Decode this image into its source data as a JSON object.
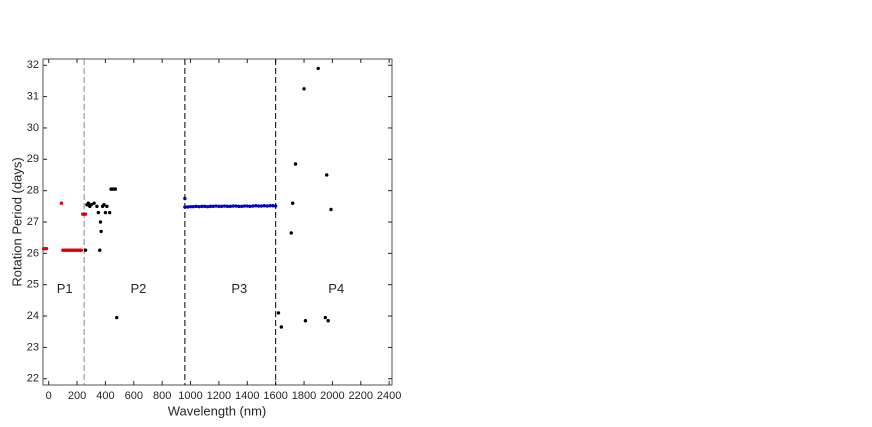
{
  "chart_data": {
    "type": "scatter",
    "xlabel": "Wavelength (nm)",
    "ylabel": "Rotation Period (days)",
    "xlim": [
      -40,
      2420
    ],
    "ylim": [
      21.8,
      32.2
    ],
    "xticks": [
      0,
      200,
      400,
      600,
      800,
      1000,
      1200,
      1400,
      1600,
      1800,
      2000,
      2200,
      2400
    ],
    "yticks": [
      22,
      23,
      24,
      25,
      26,
      27,
      28,
      29,
      30,
      31,
      32
    ],
    "grid": false,
    "reference_lines": [
      {
        "x": 250,
        "color": "#888888"
      },
      {
        "x": 960,
        "color": "#000000"
      },
      {
        "x": 1600,
        "color": "#000000"
      }
    ],
    "annotations": [
      {
        "text": "P1",
        "x": 113,
        "y": 24.85
      },
      {
        "text": "P2",
        "x": 633,
        "y": 24.85
      },
      {
        "text": "P3",
        "x": 1344,
        "y": 24.85
      },
      {
        "text": "P4",
        "x": 2027,
        "y": 24.85
      }
    ],
    "series": [
      {
        "color": "#e00000",
        "x": [
          -35,
          -25,
          -15,
          90,
          100,
          110,
          120,
          130,
          140,
          150,
          160,
          170,
          180,
          190,
          200,
          210,
          220,
          230,
          240,
          250,
          260
        ],
        "values": [
          26.15,
          26.15,
          26.15,
          27.6,
          26.1,
          26.1,
          26.1,
          26.1,
          26.1,
          26.1,
          26.1,
          26.1,
          26.1,
          26.1,
          26.1,
          26.1,
          26.1,
          26.1,
          27.25,
          27.25,
          27.25
        ]
      },
      {
        "color": "#000000",
        "x": [
          260,
          270,
          280,
          290,
          300,
          320,
          340,
          350,
          360,
          365,
          370,
          380,
          390,
          400,
          410,
          430,
          440,
          450,
          460,
          470,
          480,
          1620,
          1640,
          1710,
          1720,
          1740,
          1800,
          1810,
          1900,
          1950,
          1960,
          1970,
          1990
        ],
        "values": [
          26.1,
          27.55,
          27.6,
          27.5,
          27.55,
          27.6,
          27.5,
          27.3,
          26.1,
          27.0,
          26.7,
          27.5,
          27.55,
          27.3,
          27.5,
          27.3,
          28.05,
          28.05,
          28.05,
          28.05,
          23.95,
          24.1,
          23.65,
          26.65,
          27.6,
          28.85,
          31.25,
          23.85,
          31.9,
          23.95,
          28.5,
          23.85,
          27.4
        ]
      },
      {
        "color": "#0000c8",
        "x": [
          960,
          960,
          980,
          1000,
          1020,
          1040,
          1060,
          1080,
          1100,
          1120,
          1140,
          1160,
          1180,
          1200,
          1220,
          1240,
          1260,
          1280,
          1300,
          1320,
          1340,
          1360,
          1380,
          1400,
          1420,
          1440,
          1460,
          1480,
          1500,
          1520,
          1540,
          1560,
          1580,
          1600
        ],
        "values": [
          27.75,
          27.48,
          27.48,
          27.49,
          27.49,
          27.5,
          27.49,
          27.5,
          27.5,
          27.49,
          27.5,
          27.5,
          27.51,
          27.5,
          27.5,
          27.51,
          27.5,
          27.5,
          27.51,
          27.51,
          27.5,
          27.5,
          27.51,
          27.51,
          27.5,
          27.51,
          27.52,
          27.51,
          27.51,
          27.52,
          27.51,
          27.52,
          27.52,
          27.51
        ]
      }
    ]
  }
}
